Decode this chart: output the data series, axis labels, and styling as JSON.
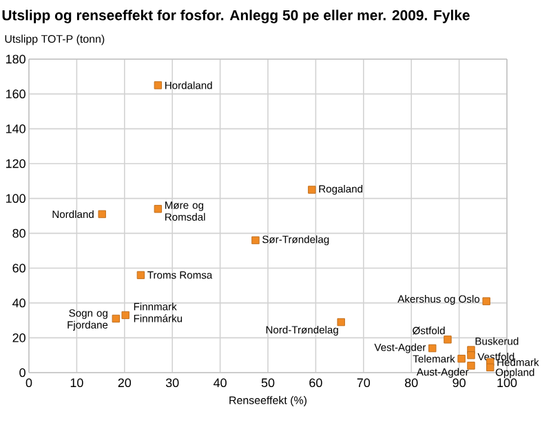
{
  "chart_data": {
    "type": "scatter",
    "title": "Utslipp og renseeffekt for fosfor. Anlegg 50 pe eller mer. 2009. Fylke",
    "ylabel": "Utslipp TOT-P (tonn)",
    "xlabel": "Renseeffekt (%)",
    "xlim": [
      0,
      100
    ],
    "ylim": [
      0,
      180
    ],
    "xticks": [
      0,
      10,
      20,
      30,
      40,
      50,
      60,
      70,
      80,
      90,
      100
    ],
    "yticks": [
      0,
      20,
      40,
      60,
      80,
      100,
      120,
      140,
      160,
      180
    ],
    "grid": true,
    "marker": "square",
    "series": [
      {
        "color": "#f08a24",
        "x": [
          27,
          59.2,
          15.3,
          27,
          47.4,
          23.4,
          18.2,
          20.2,
          65.3,
          95.7,
          87.6,
          84.4,
          90.5,
          92.5,
          92.5,
          92.5,
          96.5,
          96.5
        ],
        "values": [
          165,
          105,
          91,
          94,
          76,
          56,
          31,
          33,
          29,
          41,
          19,
          14,
          8,
          13,
          10,
          4,
          6,
          3
        ]
      }
    ],
    "annotations": [
      {
        "text": "Hordaland",
        "x": 27,
        "y": 165
      },
      {
        "text": "Rogaland",
        "x": 59.2,
        "y": 105
      },
      {
        "text": "Nordland",
        "x": 15.3,
        "y": 91
      },
      {
        "text": "Møre og Romsdal",
        "x": 27,
        "y": 94
      },
      {
        "text": "Sør-Trøndelag",
        "x": 47.4,
        "y": 76
      },
      {
        "text": "Troms Romsa",
        "x": 23.4,
        "y": 56
      },
      {
        "text": "Sogn og Fjordane",
        "x": 18.2,
        "y": 31
      },
      {
        "text": "Finnmark Finnmárku",
        "x": 20.2,
        "y": 33
      },
      {
        "text": "Nord-Trøndelag",
        "x": 65.3,
        "y": 29
      },
      {
        "text": "Akershus og Oslo",
        "x": 95.7,
        "y": 41
      },
      {
        "text": "Østfold",
        "x": 87.6,
        "y": 19
      },
      {
        "text": "Vest-Agder",
        "x": 84.4,
        "y": 14
      },
      {
        "text": "Telemark",
        "x": 90.5,
        "y": 8
      },
      {
        "text": "Buskerud",
        "x": 92.5,
        "y": 13
      },
      {
        "text": "Vestfold",
        "x": 92.5,
        "y": 10
      },
      {
        "text": "Aust-Agder",
        "x": 92.5,
        "y": 4
      },
      {
        "text": "Hedmark",
        "x": 96.5,
        "y": 6
      },
      {
        "text": "Oppland",
        "x": 96.5,
        "y": 3
      }
    ]
  }
}
